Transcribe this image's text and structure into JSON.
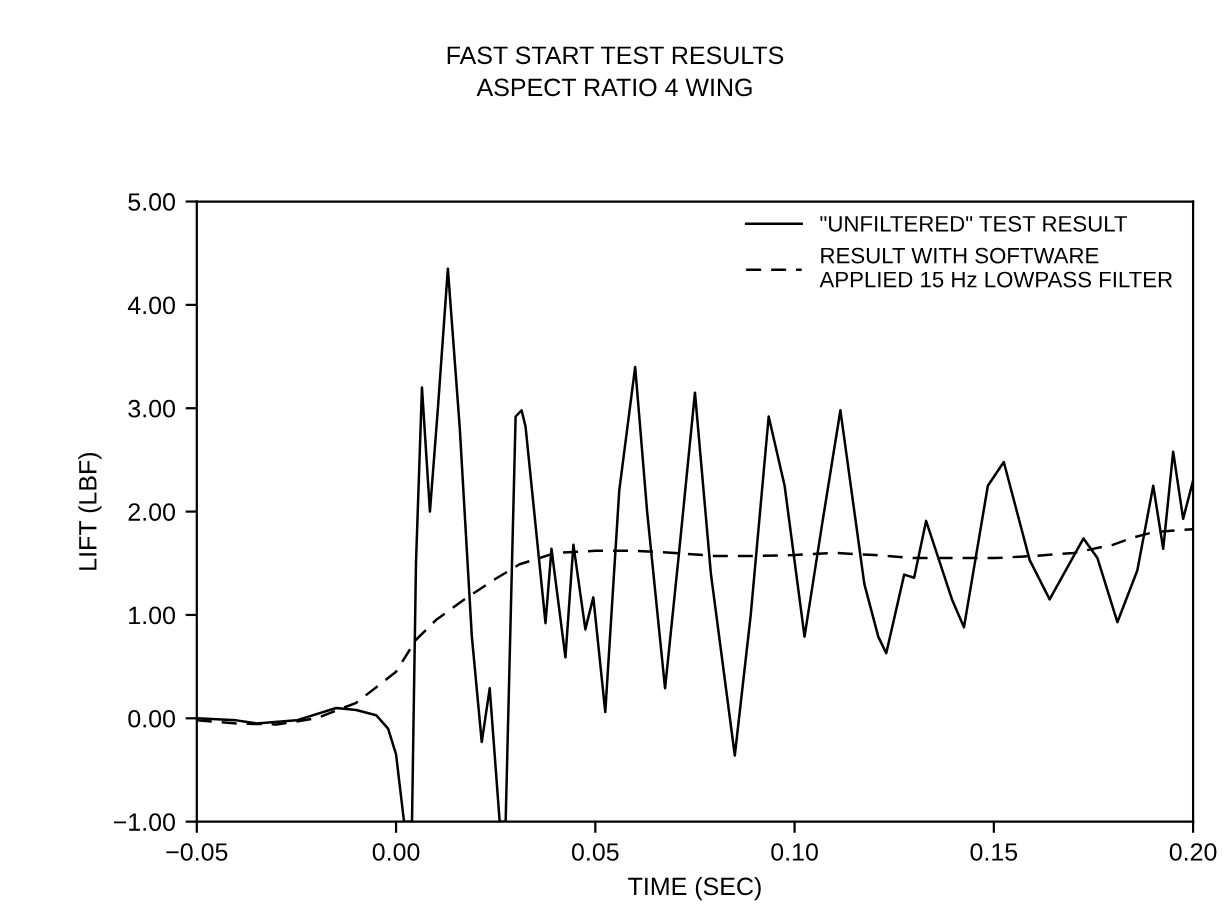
{
  "chart_data": {
    "type": "line",
    "title": "FAST START TEST RESULTS",
    "subtitle": "ASPECT RATIO 4 WING",
    "xlabel": "TIME (SEC)",
    "ylabel": "LIFT (LBF)",
    "xlim": [
      -0.05,
      0.2
    ],
    "ylim": [
      -1.0,
      5.0
    ],
    "xticks": [
      {
        "value": -0.05,
        "label": "−0.05"
      },
      {
        "value": 0.0,
        "label": "0.00"
      },
      {
        "value": 0.05,
        "label": "0.05"
      },
      {
        "value": 0.1,
        "label": "0.10"
      },
      {
        "value": 0.15,
        "label": "0.15"
      },
      {
        "value": 0.2,
        "label": "0.20"
      }
    ],
    "yticks": [
      {
        "value": -1.0,
        "label": "−1.00"
      },
      {
        "value": 0.0,
        "label": "0.00"
      },
      {
        "value": 1.0,
        "label": "1.00"
      },
      {
        "value": 2.0,
        "label": "2.00"
      },
      {
        "value": 3.0,
        "label": "3.00"
      },
      {
        "value": 4.0,
        "label": "4.00"
      },
      {
        "value": 5.0,
        "label": "5.00"
      }
    ],
    "grid": false,
    "legend": "top right",
    "series": [
      {
        "name": "\"UNFILTERED\" TEST RESULT",
        "color": "#000000",
        "line_style": "solid",
        "x": [
          -0.05,
          -0.04,
          -0.035,
          -0.025,
          -0.015,
          -0.01,
          -0.005,
          -0.002,
          0.0,
          0.002,
          0.004,
          0.005,
          0.0065,
          0.0085,
          0.0105,
          0.013,
          0.016,
          0.019,
          0.0215,
          0.0235,
          0.026,
          0.0275,
          0.03,
          0.0315,
          0.0325,
          0.0375,
          0.039,
          0.0425,
          0.0445,
          0.0475,
          0.0495,
          0.0525,
          0.056,
          0.06,
          0.063,
          0.0675,
          0.071,
          0.075,
          0.079,
          0.085,
          0.089,
          0.0935,
          0.0975,
          0.1025,
          0.107,
          0.1115,
          0.1175,
          0.121,
          0.123,
          0.1275,
          0.13,
          0.133,
          0.1395,
          0.1425,
          0.1485,
          0.1525,
          0.159,
          0.164,
          0.1725,
          0.176,
          0.181,
          0.186,
          0.19,
          0.1925,
          0.195,
          0.1975,
          0.2
        ],
        "values": [
          0.0,
          -0.02,
          -0.05,
          -0.02,
          0.1,
          0.08,
          0.03,
          -0.1,
          -0.35,
          -1.0,
          -1.0,
          1.5,
          3.2,
          2.0,
          3.0,
          4.35,
          2.8,
          0.8,
          -0.23,
          0.29,
          -1.0,
          -1.0,
          2.92,
          2.98,
          2.82,
          0.92,
          1.64,
          0.59,
          1.68,
          0.86,
          1.17,
          0.06,
          2.2,
          3.4,
          2.0,
          0.29,
          1.6,
          3.15,
          1.4,
          -0.36,
          1.0,
          2.92,
          2.25,
          0.79,
          1.9,
          2.98,
          1.3,
          0.79,
          0.63,
          1.39,
          1.36,
          1.91,
          1.15,
          0.88,
          2.25,
          2.48,
          1.53,
          1.15,
          1.74,
          1.55,
          0.93,
          1.43,
          2.25,
          1.64,
          2.58,
          1.93,
          2.3
        ]
      },
      {
        "name": "RESULT WITH SOFTWARE\nAPPLIED 15 Hz LOWPASS FILTER",
        "color": "#000000",
        "line_style": "dashed",
        "x": [
          -0.05,
          -0.04,
          -0.03,
          -0.02,
          -0.01,
          0.0,
          0.005,
          0.01,
          0.0175,
          0.025,
          0.031,
          0.04,
          0.05,
          0.06,
          0.07,
          0.08,
          0.09,
          0.1,
          0.11,
          0.12,
          0.13,
          0.14,
          0.15,
          0.16,
          0.17,
          0.18,
          0.185,
          0.19,
          0.2
        ],
        "values": [
          -0.02,
          -0.05,
          -0.06,
          0.0,
          0.15,
          0.45,
          0.76,
          0.95,
          1.16,
          1.35,
          1.49,
          1.6,
          1.62,
          1.62,
          1.6,
          1.57,
          1.57,
          1.58,
          1.6,
          1.58,
          1.55,
          1.55,
          1.55,
          1.57,
          1.6,
          1.68,
          1.75,
          1.8,
          1.83
        ]
      }
    ]
  }
}
